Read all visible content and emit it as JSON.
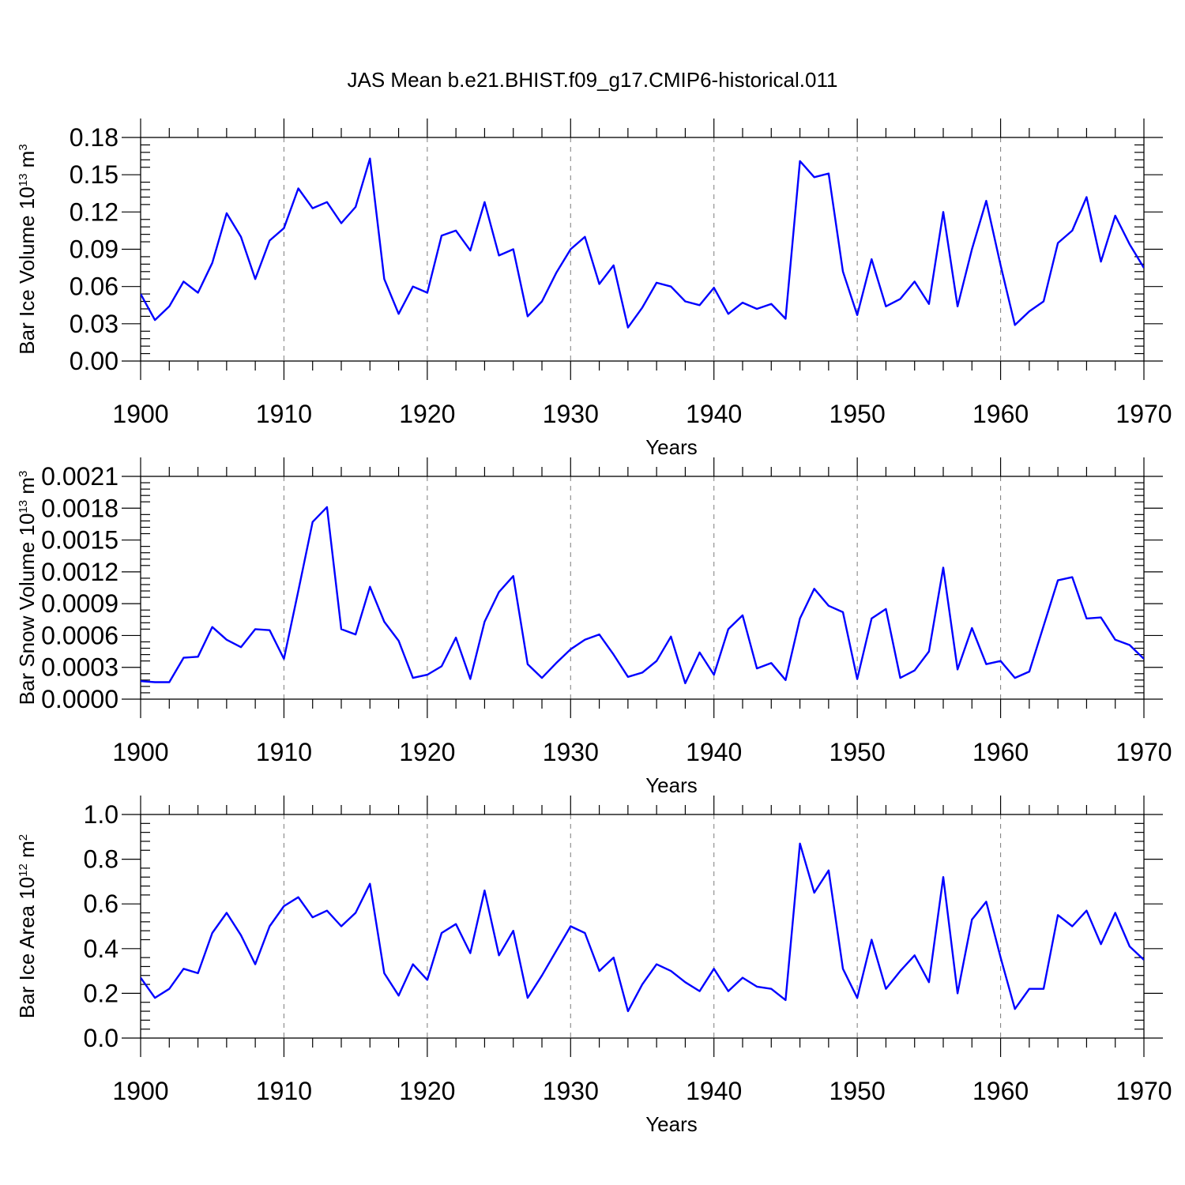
{
  "title": "JAS Mean b.e21.BHIST.f09_g17.CMIP6-historical.011",
  "colors": {
    "line": "#0000ff",
    "axis": "#000000",
    "grid": "#888888"
  },
  "chart_data": [
    {
      "type": "line",
      "xlabel": "Years",
      "ylabel_main": "Bar Ice Volume 10",
      "ylabel_exp": "13",
      "ylabel_unit": " m",
      "ylabel_unit_exp": "3",
      "xlim": [
        1900,
        1970
      ],
      "ylim": [
        0,
        0.18
      ],
      "xticks": [
        1900,
        1910,
        1920,
        1930,
        1940,
        1950,
        1960,
        1970
      ],
      "yticks": [
        "0.00",
        "0.03",
        "0.06",
        "0.09",
        "0.12",
        "0.15",
        "0.18"
      ],
      "ytick_values": [
        0,
        0.03,
        0.06,
        0.09,
        0.12,
        0.15,
        0.18
      ],
      "x_start": 1900,
      "series": [
        {
          "name": "Bar Ice Volume",
          "values": [
            0.054,
            0.033,
            0.044,
            0.064,
            0.055,
            0.079,
            0.119,
            0.1,
            0.066,
            0.097,
            0.107,
            0.139,
            0.123,
            0.128,
            0.111,
            0.124,
            0.163,
            0.066,
            0.038,
            0.06,
            0.055,
            0.101,
            0.105,
            0.089,
            0.128,
            0.085,
            0.09,
            0.036,
            0.048,
            0.071,
            0.09,
            0.1,
            0.062,
            0.077,
            0.027,
            0.043,
            0.063,
            0.06,
            0.048,
            0.045,
            0.059,
            0.038,
            0.047,
            0.042,
            0.046,
            0.034,
            0.161,
            0.148,
            0.151,
            0.072,
            0.037,
            0.082,
            0.044,
            0.05,
            0.064,
            0.046,
            0.12,
            0.044,
            0.09,
            0.129,
            0.077,
            0.029,
            0.04,
            0.048,
            0.095,
            0.105,
            0.132,
            0.08,
            0.117,
            0.094,
            0.075
          ]
        }
      ]
    },
    {
      "type": "line",
      "xlabel": "Years",
      "ylabel_main": "Bar Snow Volume 10",
      "ylabel_exp": "13",
      "ylabel_unit": " m",
      "ylabel_unit_exp": "3",
      "xlim": [
        1900,
        1970
      ],
      "ylim": [
        0,
        0.0021
      ],
      "xticks": [
        1900,
        1910,
        1920,
        1930,
        1940,
        1950,
        1960,
        1970
      ],
      "yticks": [
        "0.0000",
        "0.0003",
        "0.0006",
        "0.0009",
        "0.0012",
        "0.0015",
        "0.0018",
        "0.0021"
      ],
      "ytick_values": [
        0,
        0.0003,
        0.0006,
        0.0009,
        0.0012,
        0.0015,
        0.0018,
        0.0021
      ],
      "x_start": 1900,
      "series": [
        {
          "name": "Bar Snow Volume",
          "values": [
            0.00017,
            0.00016,
            0.00016,
            0.00039,
            0.0004,
            0.00068,
            0.00056,
            0.00049,
            0.00066,
            0.00065,
            0.00038,
            0.00102,
            0.00167,
            0.00181,
            0.00066,
            0.00061,
            0.00106,
            0.00073,
            0.00055,
            0.0002,
            0.00023,
            0.00031,
            0.00058,
            0.00019,
            0.00073,
            0.00101,
            0.00116,
            0.00033,
            0.0002,
            0.00034,
            0.00047,
            0.00056,
            0.00061,
            0.00042,
            0.00021,
            0.00025,
            0.00036,
            0.00059,
            0.00015,
            0.00044,
            0.00023,
            0.00066,
            0.00079,
            0.00029,
            0.00034,
            0.00018,
            0.00076,
            0.00104,
            0.00088,
            0.00082,
            0.00019,
            0.00076,
            0.00085,
            0.0002,
            0.00027,
            0.00045,
            0.00124,
            0.00028,
            0.00067,
            0.00033,
            0.00036,
            0.0002,
            0.00026,
            0.00069,
            0.00112,
            0.00115,
            0.00076,
            0.00077,
            0.00056,
            0.00051,
            0.00038
          ]
        }
      ]
    },
    {
      "type": "line",
      "xlabel": "Years",
      "ylabel_main": "Bar Ice Area 10",
      "ylabel_exp": "12",
      "ylabel_unit": " m",
      "ylabel_unit_exp": "2",
      "xlim": [
        1900,
        1970
      ],
      "ylim": [
        0,
        1.0
      ],
      "xticks": [
        1900,
        1910,
        1920,
        1930,
        1940,
        1950,
        1960,
        1970
      ],
      "yticks": [
        "0.0",
        "0.2",
        "0.4",
        "0.6",
        "0.8",
        "1.0"
      ],
      "ytick_values": [
        0,
        0.2,
        0.4,
        0.6,
        0.8,
        1.0
      ],
      "x_start": 1900,
      "series": [
        {
          "name": "Bar Ice Area",
          "values": [
            0.27,
            0.18,
            0.22,
            0.31,
            0.29,
            0.47,
            0.56,
            0.46,
            0.33,
            0.5,
            0.59,
            0.63,
            0.54,
            0.57,
            0.5,
            0.56,
            0.69,
            0.29,
            0.19,
            0.33,
            0.26,
            0.47,
            0.51,
            0.38,
            0.66,
            0.37,
            0.48,
            0.18,
            0.28,
            0.39,
            0.5,
            0.47,
            0.3,
            0.36,
            0.12,
            0.24,
            0.33,
            0.3,
            0.25,
            0.21,
            0.31,
            0.21,
            0.27,
            0.23,
            0.22,
            0.17,
            0.87,
            0.65,
            0.75,
            0.31,
            0.18,
            0.44,
            0.22,
            0.3,
            0.37,
            0.25,
            0.72,
            0.2,
            0.53,
            0.61,
            0.36,
            0.13,
            0.22,
            0.22,
            0.55,
            0.5,
            0.57,
            0.42,
            0.56,
            0.41,
            0.35
          ]
        }
      ]
    }
  ]
}
